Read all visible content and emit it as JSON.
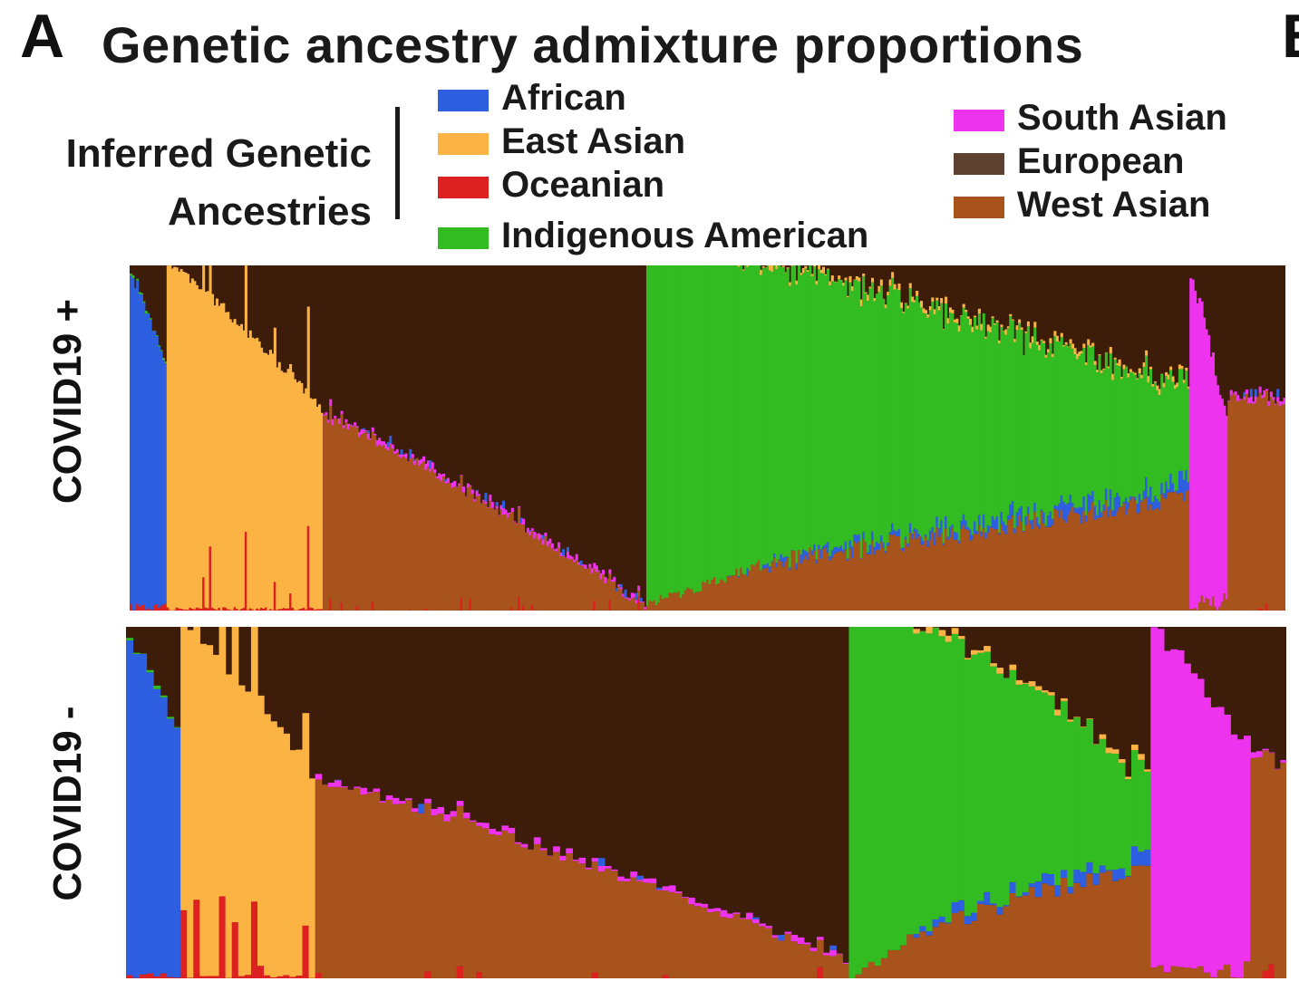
{
  "panel_letter": "A",
  "panel_letter_right": "B",
  "title": "Genetic ancestry admixture proportions",
  "legend": {
    "heading_line1": "Inferred Genetic",
    "heading_line2": "Ancestries",
    "items": [
      {
        "label": "African",
        "color": "#2d5fe0"
      },
      {
        "label": "East Asian",
        "color": "#fbb444"
      },
      {
        "label": "Oceanian",
        "color": "#dd2020"
      },
      {
        "label": "Indigenous American",
        "color": "#33bb22"
      },
      {
        "label": "South Asian",
        "color": "#ee33ee"
      },
      {
        "label": "European",
        "color": "#5c4030"
      },
      {
        "label": "West Asian",
        "color": "#a8521c"
      }
    ]
  },
  "chart_data": [
    {
      "type": "stacked-bar",
      "row_label": "COVID19 +",
      "components": [
        "African",
        "Oceanian",
        "West Asian",
        "South Asian",
        "Indigenous American",
        "East Asian",
        "European"
      ],
      "ylim": [
        0,
        1
      ],
      "grid": false,
      "groups": [
        {
          "share": 0.032,
          "main": "African",
          "start": 0.96,
          "end": 0.7
        },
        {
          "share": 0.135,
          "main": "East Asian",
          "start": 1.0,
          "end": 0.58
        },
        {
          "share": 0.28,
          "main": "West Asian",
          "start": 0.56,
          "end": 0.01
        },
        {
          "share": 0.47,
          "main": "Indigenous American",
          "start": 0.98,
          "end": 0.28
        },
        {
          "share": 0.033,
          "main": "South Asian",
          "start": 0.96,
          "end": 0.52
        },
        {
          "share": 0.05,
          "main": "West Asian",
          "start": 0.62,
          "end": 0.6
        }
      ]
    },
    {
      "type": "stacked-bar",
      "row_label": "COVID19 -",
      "components": [
        "African",
        "Oceanian",
        "West Asian",
        "South Asian",
        "Indigenous American",
        "East Asian",
        "European"
      ],
      "ylim": [
        0,
        1
      ],
      "grid": false,
      "groups": [
        {
          "share": 0.047,
          "main": "African",
          "start": 0.96,
          "end": 0.7
        },
        {
          "share": 0.116,
          "main": "East Asian",
          "start": 1.0,
          "end": 0.58
        },
        {
          "share": 0.46,
          "main": "West Asian",
          "start": 0.56,
          "end": 0.05
        },
        {
          "share": 0.26,
          "main": "Indigenous American",
          "start": 1.0,
          "end": 0.23
        },
        {
          "share": 0.086,
          "main": "South Asian",
          "start": 0.96,
          "end": 0.65
        },
        {
          "share": 0.031,
          "main": "West Asian",
          "start": 0.62,
          "end": 0.6
        }
      ]
    }
  ]
}
